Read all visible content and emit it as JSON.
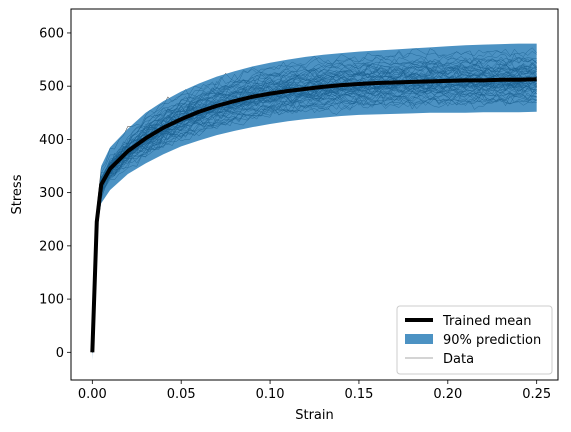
{
  "chart_data": {
    "type": "line",
    "title": "",
    "xlabel": "Strain",
    "ylabel": "Stress",
    "xlim": [
      -0.012,
      0.262
    ],
    "ylim": [
      -52,
      645
    ],
    "xticks": [
      0.0,
      0.05,
      0.1,
      0.15,
      0.2,
      0.25
    ],
    "xtick_labels": [
      "0.00",
      "0.05",
      "0.10",
      "0.15",
      "0.20",
      "0.25"
    ],
    "yticks": [
      0,
      100,
      200,
      300,
      400,
      500,
      600
    ],
    "ytick_labels": [
      "0",
      "100",
      "200",
      "300",
      "400",
      "500",
      "600"
    ],
    "grid": false,
    "legend_position": "lower-right",
    "colors": {
      "mean": "#000000",
      "band": "#1f77b4",
      "data": "#000000",
      "legend_data": "#bbbbbb"
    },
    "series": [
      {
        "name": "Trained mean",
        "kind": "line",
        "x": [
          0.0,
          0.0025,
          0.005,
          0.01,
          0.02,
          0.03,
          0.04,
          0.05,
          0.06,
          0.07,
          0.08,
          0.09,
          0.1,
          0.11,
          0.12,
          0.13,
          0.14,
          0.15,
          0.16,
          0.17,
          0.18,
          0.19,
          0.2,
          0.21,
          0.22,
          0.23,
          0.24,
          0.25
        ],
        "y": [
          0,
          245,
          315,
          345,
          378,
          402,
          422,
          438,
          452,
          463,
          472,
          480,
          486,
          491,
          495,
          499,
          502,
          504,
          506,
          507,
          508,
          509,
          510,
          511,
          511,
          512,
          512,
          513
        ]
      },
      {
        "name": "90% prediction",
        "kind": "band",
        "x": [
          0.0,
          0.0025,
          0.005,
          0.01,
          0.02,
          0.03,
          0.04,
          0.05,
          0.06,
          0.07,
          0.08,
          0.09,
          0.1,
          0.11,
          0.12,
          0.13,
          0.14,
          0.15,
          0.16,
          0.17,
          0.18,
          0.19,
          0.2,
          0.21,
          0.22,
          0.23,
          0.24,
          0.25
        ],
        "lower": [
          -15,
          235,
          280,
          305,
          335,
          355,
          372,
          387,
          398,
          408,
          416,
          423,
          429,
          434,
          438,
          441,
          444,
          446,
          447,
          448,
          449,
          450,
          450,
          450,
          451,
          451,
          451,
          452
        ],
        "upper": [
          5,
          255,
          350,
          385,
          420,
          450,
          472,
          490,
          505,
          518,
          528,
          537,
          544,
          550,
          555,
          559,
          562,
          565,
          567,
          569,
          571,
          573,
          575,
          577,
          578,
          579,
          580,
          580
        ]
      },
      {
        "name": "Data",
        "kind": "sample-lines",
        "count": 60,
        "x": [
          0.0,
          0.0025,
          0.005,
          0.01,
          0.02,
          0.03,
          0.04,
          0.05,
          0.06,
          0.07,
          0.08,
          0.09,
          0.1,
          0.11,
          0.12,
          0.13,
          0.14,
          0.15,
          0.16,
          0.17,
          0.18,
          0.19,
          0.2,
          0.21,
          0.22,
          0.23,
          0.24,
          0.25
        ],
        "y_range_at_end": [
          440,
          605
        ]
      }
    ]
  }
}
